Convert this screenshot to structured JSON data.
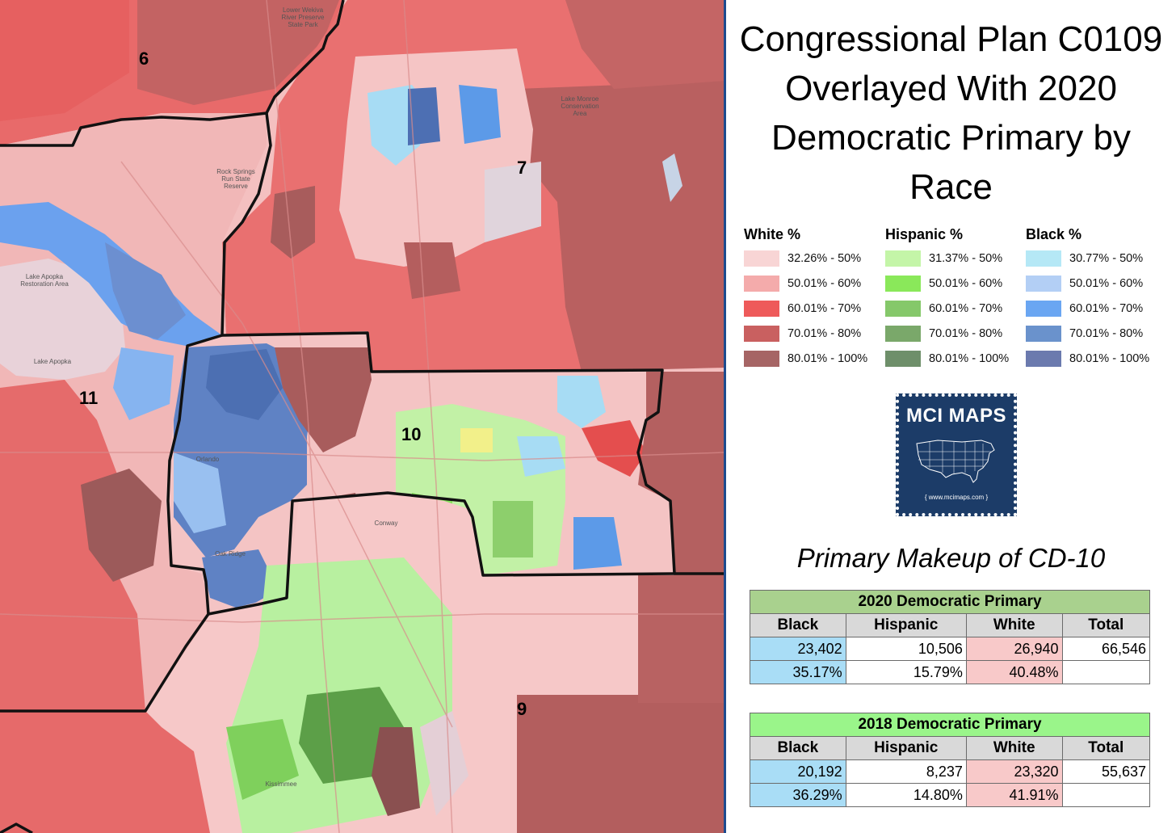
{
  "title": "Congressional Plan C0109 Overlayed With 2020 Democratic Primary by Race",
  "map": {
    "district_labels": [
      "6",
      "7",
      "10",
      "11",
      "9"
    ],
    "place_labels": {
      "lower_wekiva": "Lower Wekiva River Preserve State Park",
      "rock_springs": "Rock Springs Run State Reserve",
      "lake_apopka_restoration": "Lake Apopka Restoration Area",
      "lake_apopka": "Lake Apopka",
      "orlando": "Orlando",
      "conway": "Conway",
      "oak_ridge": "Oak Ridge",
      "kissimmee": "Kissimmee",
      "lake_monroe": "Lake Monroe Conservation Area"
    },
    "district_line_color": "#111111"
  },
  "legend": {
    "groups": [
      {
        "heading": "White %",
        "items": [
          {
            "label": "32.26% - 50%",
            "color": "#f8d5d5"
          },
          {
            "label": "50.01% - 60%",
            "color": "#f4abab"
          },
          {
            "label": "60.01% - 70%",
            "color": "#ee5a5a"
          },
          {
            "label": "70.01% - 80%",
            "color": "#c96060"
          },
          {
            "label": "80.01% - 100%",
            "color": "#a66565"
          }
        ]
      },
      {
        "heading": "Hispanic %",
        "items": [
          {
            "label": "31.37% - 50%",
            "color": "#c4f5a8"
          },
          {
            "label": "50.01% - 60%",
            "color": "#8ae85a"
          },
          {
            "label": "60.01% - 70%",
            "color": "#85c86a"
          },
          {
            "label": "70.01% - 80%",
            "color": "#7aa86a"
          },
          {
            "label": "80.01% - 100%",
            "color": "#6e8f6a"
          }
        ]
      },
      {
        "heading": "Black %",
        "items": [
          {
            "label": "30.77% - 50%",
            "color": "#b5e8f6"
          },
          {
            "label": "50.01% - 60%",
            "color": "#b3cff5"
          },
          {
            "label": "60.01% - 70%",
            "color": "#6aa6f2"
          },
          {
            "label": "70.01% - 80%",
            "color": "#6a92cc"
          },
          {
            "label": "80.01% - 100%",
            "color": "#6b7aae"
          }
        ]
      }
    ]
  },
  "logo": {
    "title": "MCI MAPS",
    "url": "{ www.mcimaps.com }"
  },
  "makeup_title": "Primary Makeup of CD-10",
  "tables": [
    {
      "caption": "2020 Democratic Primary",
      "caption_color": "#a9d18e",
      "headers": [
        "Black",
        "Hispanic",
        "White",
        "Total"
      ],
      "counts": [
        "23,402",
        "10,506",
        "26,940",
        "66,546"
      ],
      "percents": [
        "35.17%",
        "15.79%",
        "40.48%",
        ""
      ]
    },
    {
      "caption": "2018 Democratic Primary",
      "caption_color": "#9af58a",
      "headers": [
        "Black",
        "Hispanic",
        "White",
        "Total"
      ],
      "counts": [
        "20,192",
        "8,237",
        "23,320",
        "55,637"
      ],
      "percents": [
        "36.29%",
        "14.80%",
        "41.91%",
        ""
      ]
    }
  ]
}
